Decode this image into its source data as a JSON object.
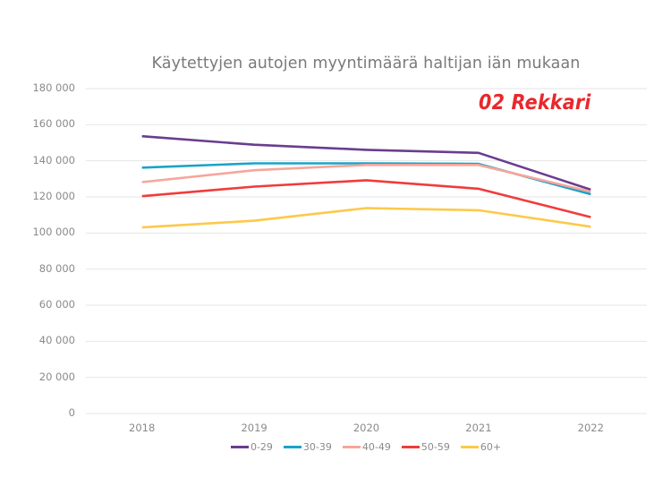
{
  "title": "Käytettyjen autojen myyntimäärä haltijan iän mukaan",
  "brand": "02 Rekkari",
  "colors": {
    "brand": "#e8282d",
    "gridline": "#e6e6e6",
    "axis_text": "#8a8a8a"
  },
  "chart_data": {
    "type": "line",
    "title": "Käytettyjen autojen myyntimäärä haltijan iän mukaan",
    "xlabel": "",
    "ylabel": "",
    "categories": [
      "2018",
      "2019",
      "2020",
      "2021",
      "2022"
    ],
    "ylim": [
      0,
      180000
    ],
    "yticks": [
      0,
      20000,
      40000,
      60000,
      80000,
      100000,
      120000,
      140000,
      160000,
      180000
    ],
    "ytick_labels": [
      "0",
      "20 000",
      "40 000",
      "60 000",
      "80 000",
      "100 000",
      "120 000",
      "140 000",
      "160 000",
      "180 000"
    ],
    "grid": true,
    "legend_position": "bottom",
    "series": [
      {
        "name": "0-29",
        "color": "#6a3d8f",
        "values": [
          153600,
          148900,
          146100,
          144400,
          124000
        ]
      },
      {
        "name": "30-39",
        "color": "#1aa3c8",
        "values": [
          136200,
          138600,
          138600,
          138300,
          121500
        ]
      },
      {
        "name": "40-49",
        "color": "#f7a59b",
        "values": [
          128200,
          134800,
          137700,
          137700,
          122900
        ]
      },
      {
        "name": "50-59",
        "color": "#f03c3c",
        "values": [
          120400,
          125700,
          129200,
          124500,
          108800
        ]
      },
      {
        "name": "60+",
        "color": "#fcc94a",
        "values": [
          103100,
          106800,
          113800,
          112600,
          103500
        ]
      }
    ]
  }
}
